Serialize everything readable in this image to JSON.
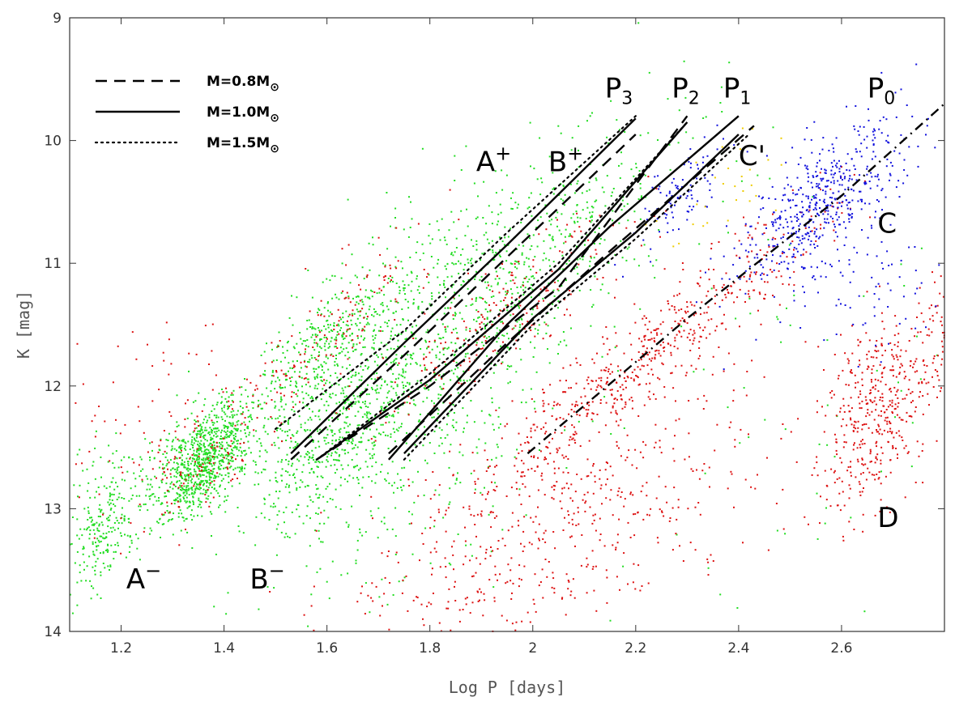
{
  "chart_data": {
    "type": "scatter",
    "xlabel": "Log P [days]",
    "ylabel": "K [mag]",
    "xlim": [
      1.1,
      2.8
    ],
    "ylim": [
      14,
      9
    ],
    "x_ticks": [
      1.2,
      1.4,
      1.6,
      1.8,
      2,
      2.2,
      2.4,
      2.6
    ],
    "x_tick_labels": [
      "1.2",
      "1.4",
      "1.6",
      "1.8",
      "2",
      "2.2",
      "2.4",
      "2.6"
    ],
    "y_ticks": [
      9,
      10,
      11,
      12,
      13,
      14
    ],
    "y_tick_labels": [
      "9",
      "10",
      "11",
      "12",
      "13",
      "14"
    ],
    "y_inverted": true,
    "grid": false,
    "legend_position": "top-left",
    "legend": [
      {
        "text": "M=0.8M",
        "sub": "⊙",
        "style": "dashed"
      },
      {
        "text": "M=1.0M",
        "sub": "⊙",
        "style": "solid"
      },
      {
        "text": "M=1.5M",
        "sub": "⊙",
        "style": "dotted"
      }
    ],
    "point_colors": {
      "green": "#22dd22",
      "red": "#dd1111",
      "blue": "#1111dd",
      "yellow": "#eecc00"
    },
    "point_groups": [
      {
        "color": "green",
        "n": 900,
        "xc": 1.36,
        "yc": 12.6,
        "sx": 0.05,
        "sy": 0.2,
        "slope": -3.0
      },
      {
        "color": "green",
        "n": 260,
        "xc": 1.17,
        "yc": 13.1,
        "sx": 0.04,
        "sy": 0.25,
        "slope": -3.0
      },
      {
        "color": "green",
        "n": 380,
        "xc": 1.6,
        "yc": 11.65,
        "sx": 0.08,
        "sy": 0.22,
        "slope": -3.5
      },
      {
        "color": "green",
        "n": 900,
        "xc": 1.82,
        "yc": 11.6,
        "sx": 0.17,
        "sy": 0.55,
        "slope": -3.0
      },
      {
        "color": "green",
        "n": 450,
        "xc": 1.62,
        "yc": 12.4,
        "sx": 0.08,
        "sy": 0.3,
        "slope": -3.0
      },
      {
        "color": "green",
        "n": 220,
        "xc": 2.05,
        "yc": 10.9,
        "sx": 0.14,
        "sy": 0.4,
        "slope": -3.0
      },
      {
        "color": "green",
        "n": 120,
        "xc": 1.8,
        "yc": 12.9,
        "sx": 0.15,
        "sy": 0.4,
        "slope": -3.0
      },
      {
        "color": "green",
        "n": 70,
        "xc": 2.5,
        "yc": 12.0,
        "sx": 0.2,
        "sy": 1.0,
        "slope": 0
      },
      {
        "color": "red",
        "n": 160,
        "xc": 1.6,
        "yc": 11.6,
        "sx": 0.1,
        "sy": 0.25,
        "slope": -3.5
      },
      {
        "color": "red",
        "n": 90,
        "xc": 1.35,
        "yc": 12.6,
        "sx": 0.05,
        "sy": 0.2,
        "slope": -3.0
      },
      {
        "color": "red",
        "n": 220,
        "xc": 1.95,
        "yc": 11.4,
        "sx": 0.12,
        "sy": 0.2,
        "slope": -3.0
      },
      {
        "color": "red",
        "n": 550,
        "xc": 2.22,
        "yc": 11.75,
        "sx": 0.18,
        "sy": 0.2,
        "slope": -3.2
      },
      {
        "color": "red",
        "n": 600,
        "xc": 2.05,
        "yc": 13.1,
        "sx": 0.22,
        "sy": 0.5,
        "slope": -2.0
      },
      {
        "color": "red",
        "n": 450,
        "xc": 2.67,
        "yc": 12.2,
        "sx": 0.06,
        "sy": 0.35,
        "slope": -3.0
      },
      {
        "color": "red",
        "n": 90,
        "xc": 1.25,
        "yc": 12.5,
        "sx": 0.1,
        "sy": 0.5,
        "slope": 0
      },
      {
        "color": "red",
        "n": 40,
        "xc": 2.78,
        "yc": 11.6,
        "sx": 0.02,
        "sy": 0.3,
        "slope": 0
      },
      {
        "color": "blue",
        "n": 520,
        "xc": 2.56,
        "yc": 10.5,
        "sx": 0.08,
        "sy": 0.25,
        "slope": -3.0
      },
      {
        "color": "blue",
        "n": 90,
        "xc": 2.28,
        "yc": 10.45,
        "sx": 0.05,
        "sy": 0.15,
        "slope": -3.0
      },
      {
        "color": "blue",
        "n": 70,
        "xc": 2.65,
        "yc": 11.2,
        "sx": 0.07,
        "sy": 0.25,
        "slope": 0
      },
      {
        "color": "yellow",
        "n": 30,
        "xc": 2.35,
        "yc": 10.5,
        "sx": 0.06,
        "sy": 0.2,
        "slope": -3.0
      }
    ],
    "series": [
      {
        "style": "solid",
        "points": [
          [
            1.53,
            12.55
          ],
          [
            1.75,
            11.65
          ],
          [
            1.95,
            10.85
          ],
          [
            2.2,
            9.82
          ]
        ]
      },
      {
        "style": "dashed",
        "points": [
          [
            1.53,
            12.6
          ],
          [
            1.75,
            11.75
          ],
          [
            1.95,
            10.95
          ],
          [
            2.2,
            9.95
          ]
        ]
      },
      {
        "style": "dotted",
        "points": [
          [
            1.5,
            12.35
          ],
          [
            1.75,
            11.55
          ],
          [
            1.95,
            10.75
          ],
          [
            2.2,
            9.8
          ]
        ]
      },
      {
        "style": "solid",
        "points": [
          [
            1.58,
            12.6
          ],
          [
            1.8,
            11.95
          ],
          [
            2.05,
            11.05
          ],
          [
            2.3,
            9.85
          ]
        ]
      },
      {
        "style": "dashed",
        "points": [
          [
            1.58,
            12.6
          ],
          [
            1.8,
            12.0
          ],
          [
            2.05,
            11.2
          ],
          [
            2.3,
            9.8
          ]
        ]
      },
      {
        "style": "dotted",
        "points": [
          [
            1.58,
            12.6
          ],
          [
            1.8,
            11.9
          ],
          [
            2.05,
            11.0
          ],
          [
            2.3,
            9.85
          ]
        ]
      },
      {
        "style": "solid",
        "points": [
          [
            1.72,
            12.6
          ],
          [
            1.95,
            11.5
          ],
          [
            2.15,
            10.7
          ],
          [
            2.4,
            9.8
          ]
        ]
      },
      {
        "style": "dashed",
        "points": [
          [
            1.72,
            12.55
          ],
          [
            1.95,
            11.65
          ],
          [
            2.15,
            10.9
          ],
          [
            2.43,
            9.88
          ]
        ]
      },
      {
        "style": "solid",
        "points": [
          [
            1.75,
            12.55
          ],
          [
            2.0,
            11.45
          ],
          [
            2.2,
            10.75
          ],
          [
            2.4,
            9.95
          ]
        ]
      },
      {
        "style": "dotted",
        "points": [
          [
            1.75,
            12.6
          ],
          [
            2.0,
            11.5
          ],
          [
            2.2,
            10.8
          ],
          [
            2.42,
            9.95
          ]
        ]
      },
      {
        "style": "dashdot",
        "points": [
          [
            1.99,
            12.55
          ],
          [
            2.3,
            11.45
          ],
          [
            2.6,
            10.45
          ],
          [
            2.8,
            9.7
          ]
        ]
      }
    ],
    "annotations": [
      {
        "text": "P",
        "sub": "3",
        "x": 2.14,
        "y": 9.65
      },
      {
        "text": "P",
        "sub": "2",
        "x": 2.27,
        "y": 9.65
      },
      {
        "text": "P",
        "sub": "1",
        "x": 2.37,
        "y": 9.65
      },
      {
        "text": "P",
        "sub": "0",
        "x": 2.65,
        "y": 9.65
      },
      {
        "text": "A",
        "sup": "+",
        "x": 1.89,
        "y": 10.25
      },
      {
        "text": "B",
        "sup": "+",
        "x": 2.03,
        "y": 10.25
      },
      {
        "text": "C'",
        "x": 2.4,
        "y": 10.2
      },
      {
        "text": "C",
        "x": 2.67,
        "y": 10.75
      },
      {
        "text": "D",
        "x": 2.67,
        "y": 13.15
      },
      {
        "text": "A",
        "sup": "−",
        "x": 1.21,
        "y": 13.65
      },
      {
        "text": "B",
        "sup": "−",
        "x": 1.45,
        "y": 13.65
      }
    ]
  }
}
